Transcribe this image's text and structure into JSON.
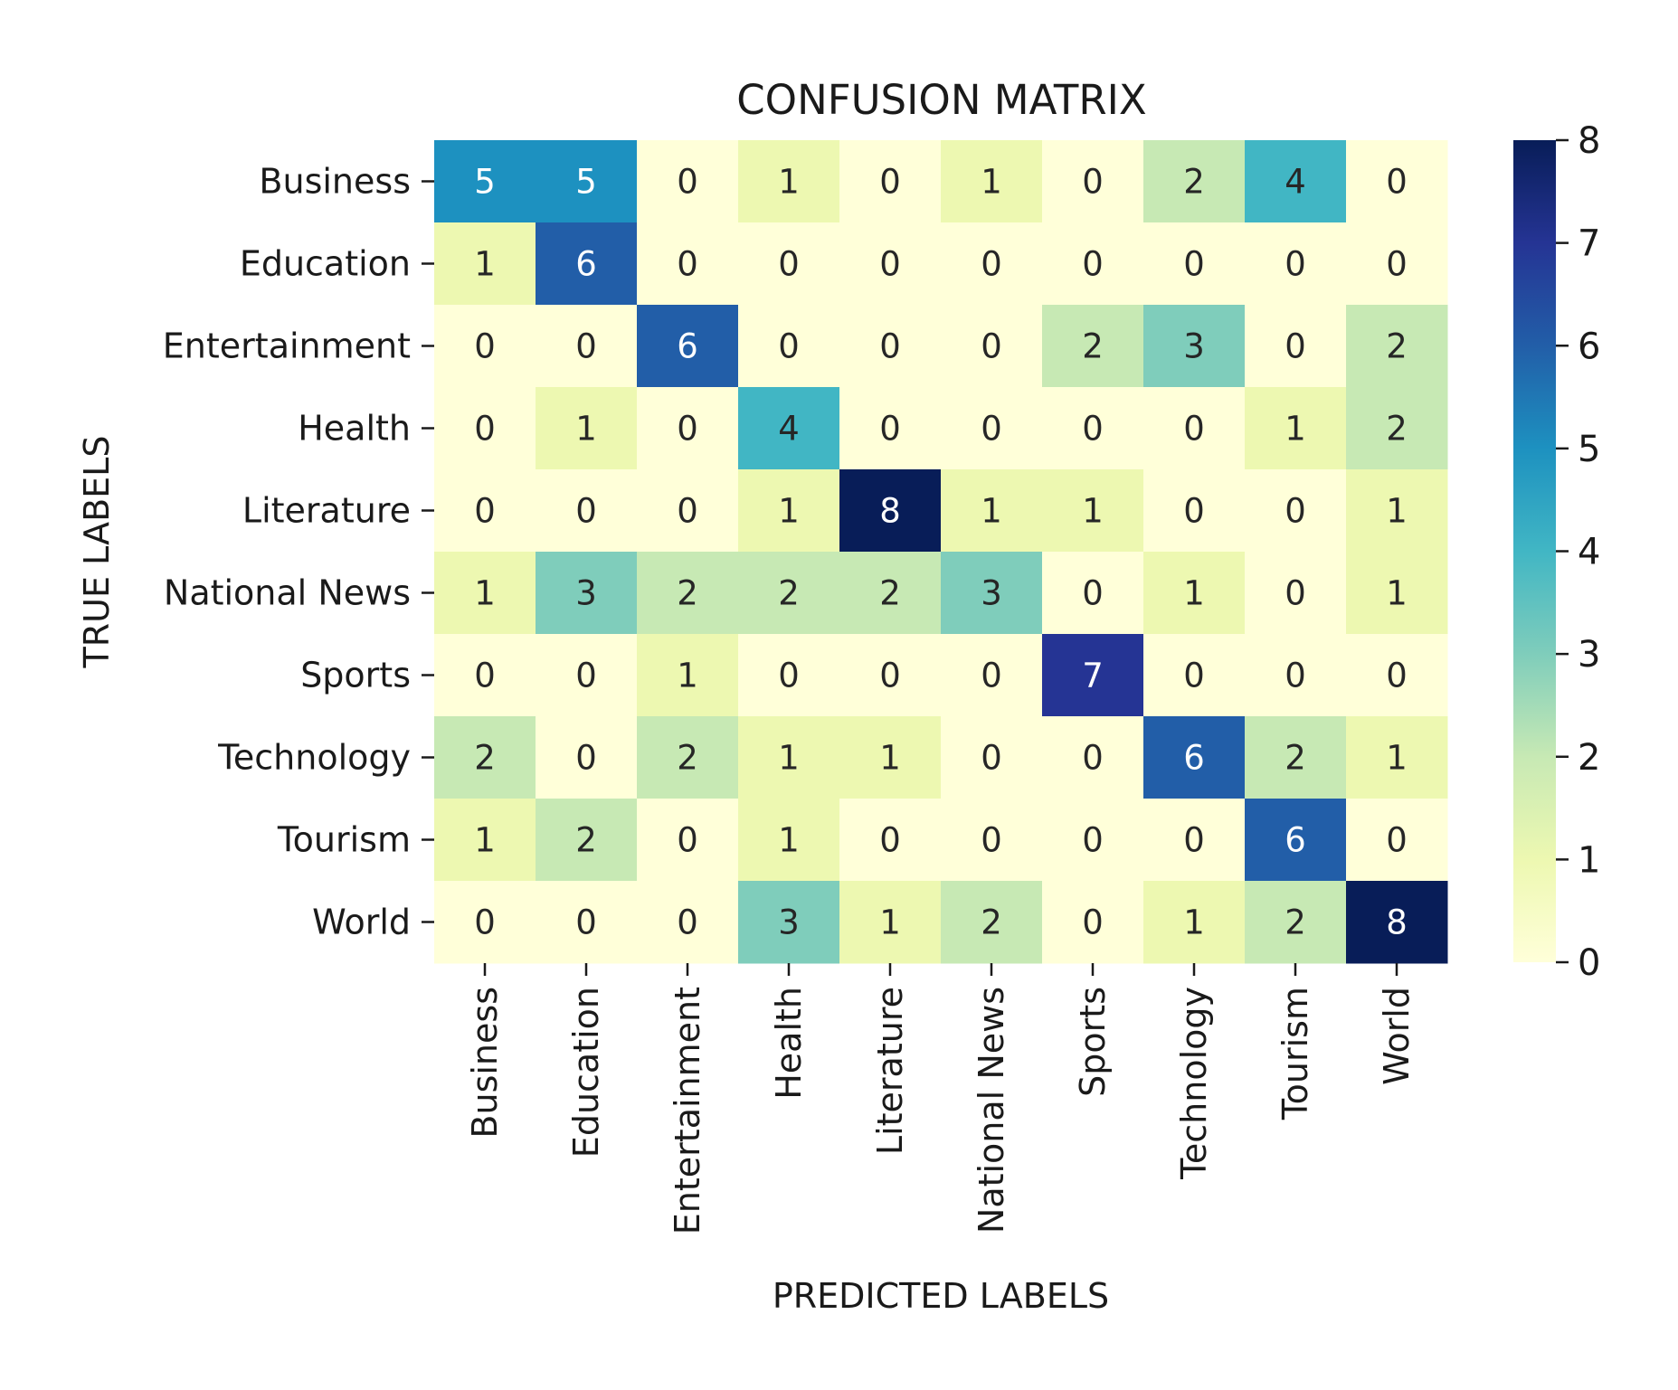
{
  "chart_data": {
    "type": "heatmap",
    "title": "CONFUSION MATRIX",
    "xlabel": "PREDICTED LABELS",
    "ylabel": "TRUE LABELS",
    "row_labels": [
      "Business",
      "Education",
      "Entertainment",
      "Health",
      "Literature",
      "National News",
      "Sports",
      "Technology",
      "Tourism",
      "World"
    ],
    "col_labels": [
      "Business",
      "Education",
      "Entertainment",
      "Health",
      "Literature",
      "National News",
      "Sports",
      "Technology",
      "Tourism",
      "World"
    ],
    "values": [
      [
        5,
        5,
        0,
        1,
        0,
        1,
        0,
        2,
        4,
        0
      ],
      [
        1,
        6,
        0,
        0,
        0,
        0,
        0,
        0,
        0,
        0
      ],
      [
        0,
        0,
        6,
        0,
        0,
        0,
        2,
        3,
        0,
        2
      ],
      [
        0,
        1,
        0,
        4,
        0,
        0,
        0,
        0,
        1,
        2
      ],
      [
        0,
        0,
        0,
        1,
        8,
        1,
        1,
        0,
        0,
        1
      ],
      [
        1,
        3,
        2,
        2,
        2,
        3,
        0,
        1,
        0,
        1
      ],
      [
        0,
        0,
        1,
        0,
        0,
        0,
        7,
        0,
        0,
        0
      ],
      [
        2,
        0,
        2,
        1,
        1,
        0,
        0,
        6,
        2,
        1
      ],
      [
        1,
        2,
        0,
        1,
        0,
        0,
        0,
        0,
        6,
        0
      ],
      [
        0,
        0,
        0,
        3,
        1,
        2,
        0,
        1,
        2,
        8
      ]
    ],
    "colorbar": {
      "range": [
        0,
        8
      ],
      "ticks": [
        "0",
        "1",
        "2",
        "3",
        "4",
        "5",
        "6",
        "7",
        "8"
      ],
      "colormap": "YlGnBu",
      "stops": [
        "#ffffd9",
        "#edf8b1",
        "#c7e9b4",
        "#7fcdbb",
        "#41b6c4",
        "#1d91c0",
        "#225ea8",
        "#253494",
        "#081d58"
      ]
    }
  }
}
